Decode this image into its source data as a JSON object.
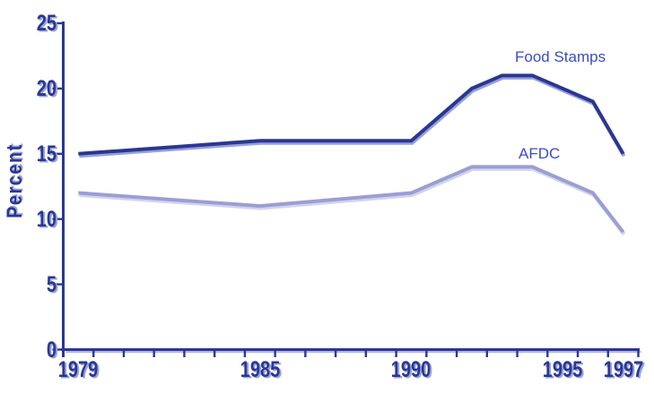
{
  "window": {
    "background": "#ffffff"
  },
  "chart_data": {
    "type": "line",
    "title": "",
    "ylabel": "Percent",
    "xlabel": "",
    "ylim": [
      0,
      25
    ],
    "yticks": [
      0,
      5,
      10,
      15,
      20,
      25
    ],
    "x_categories": [
      1979,
      1980,
      1981,
      1982,
      1983,
      1984,
      1985,
      1986,
      1987,
      1988,
      1989,
      1990,
      1991,
      1992,
      1993,
      1994,
      1995,
      1996,
      1997
    ],
    "x_tick_labels": [
      "1979",
      "1985",
      "1990",
      "1995",
      "1997"
    ],
    "grid": false,
    "legend_position": "inline-labels",
    "axis_color": "#2a3792",
    "axis_shadow_color": "#9aa4db",
    "tick_label_color": "#2a3792",
    "tick_label_shadow_color": "#9aa4db",
    "series_label_color": "#3a4dc2",
    "series": [
      {
        "name": "Food Stamps",
        "color": "#2a3792",
        "shadow_color": "#98a1d9",
        "points": [
          [
            1979,
            15
          ],
          [
            1985,
            16
          ],
          [
            1990,
            16
          ],
          [
            1992,
            20
          ],
          [
            1993,
            21
          ],
          [
            1994,
            21
          ],
          [
            1996,
            19
          ],
          [
            1997,
            15
          ]
        ]
      },
      {
        "name": "AFDC",
        "color": "#9b9ed3",
        "shadow_color": "#d2d4ee",
        "points": [
          [
            1979,
            12
          ],
          [
            1985,
            11
          ],
          [
            1990,
            12
          ],
          [
            1992,
            14
          ],
          [
            1994,
            14
          ],
          [
            1996,
            12
          ],
          [
            1997,
            9
          ]
        ]
      }
    ]
  }
}
